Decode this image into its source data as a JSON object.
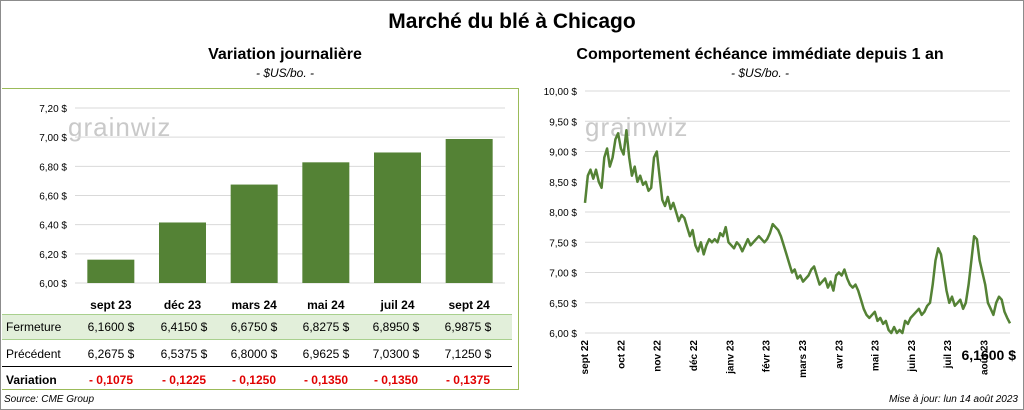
{
  "main_title": "Marché du blé à Chicago",
  "watermark": "grainwiz",
  "source": "Source: CME Group",
  "update": "Mise à jour: lun 14 août 2023",
  "chart_data": [
    {
      "type": "bar",
      "title": "Variation journalière",
      "subtitle": "- $US/bo. -",
      "categories": [
        "sept 23",
        "déc 23",
        "mars 24",
        "mai 24",
        "juil 24",
        "sept 24"
      ],
      "values": [
        6.16,
        6.415,
        6.675,
        6.8275,
        6.895,
        6.9875
      ],
      "ylim": [
        6.0,
        7.2
      ],
      "yticks": [
        "6,00 $",
        "6,20 $",
        "6,40 $",
        "6,60 $",
        "6,80 $",
        "7,00 $",
        "7,20 $"
      ],
      "color": "#548235",
      "grid": true
    },
    {
      "type": "line",
      "title": "Comportement échéance immédiate depuis 1 an",
      "subtitle": "- $US/bo. -",
      "ylim": [
        6.0,
        10.0
      ],
      "yticks": [
        "6,00 $",
        "6,50 $",
        "7,00 $",
        "7,50 $",
        "8,00 $",
        "8,50 $",
        "9,00 $",
        "9,50 $",
        "10,00 $"
      ],
      "xticks": [
        "sept 22",
        "oct 22",
        "nov 22",
        "déc 22",
        "janv 23",
        "févr 23",
        "mars 23",
        "avr 23",
        "mai 23",
        "juin 23",
        "juil 23",
        "août 23"
      ],
      "last_value_label": "6,1600 $",
      "color": "#548235",
      "grid": true,
      "series": [
        {
          "values": [
            8.15,
            8.6,
            8.7,
            8.55,
            8.7,
            8.5,
            8.4,
            8.9,
            9.05,
            8.75,
            8.9,
            9.2,
            9.3,
            9.05,
            8.95,
            9.35,
            8.9,
            8.6,
            8.75,
            8.5,
            8.6,
            8.45,
            8.5,
            8.35,
            8.4,
            8.9,
            9.0,
            8.6,
            8.2,
            8.1,
            8.25,
            8.05,
            8.15,
            8.0,
            7.85,
            7.95,
            7.9,
            7.75,
            7.6,
            7.7,
            7.45,
            7.35,
            7.5,
            7.3,
            7.45,
            7.55,
            7.5,
            7.55,
            7.5,
            7.65,
            7.6,
            7.75,
            7.5,
            7.45,
            7.4,
            7.5,
            7.45,
            7.35,
            7.45,
            7.55,
            7.45,
            7.5,
            7.55,
            7.6,
            7.55,
            7.5,
            7.55,
            7.65,
            7.8,
            7.75,
            7.7,
            7.6,
            7.45,
            7.3,
            7.15,
            7.0,
            7.05,
            6.9,
            6.95,
            6.85,
            6.9,
            6.95,
            7.05,
            7.1,
            6.95,
            6.8,
            6.85,
            6.9,
            6.75,
            6.85,
            6.7,
            6.95,
            7.0,
            6.95,
            7.05,
            6.9,
            6.8,
            6.75,
            6.8,
            6.7,
            6.55,
            6.4,
            6.3,
            6.25,
            6.3,
            6.35,
            6.2,
            6.25,
            6.15,
            6.2,
            6.05,
            6.0,
            6.1,
            6.0,
            6.05,
            6.0,
            6.2,
            6.15,
            6.25,
            6.3,
            6.35,
            6.4,
            6.3,
            6.35,
            6.45,
            6.5,
            6.8,
            7.2,
            7.4,
            7.3,
            7.0,
            6.7,
            6.5,
            6.6,
            6.45,
            6.5,
            6.55,
            6.4,
            6.5,
            6.8,
            7.2,
            7.6,
            7.55,
            7.2,
            7.0,
            6.8,
            6.5,
            6.4,
            6.3,
            6.5,
            6.6,
            6.55,
            6.35,
            6.25,
            6.16
          ]
        }
      ]
    }
  ],
  "table": {
    "rows": [
      {
        "label": "Fermeture",
        "values": [
          "6,1600  $",
          "6,4150  $",
          "6,6750  $",
          "6,8275  $",
          "6,8950  $",
          "6,9875  $"
        ]
      },
      {
        "label": "Précédent",
        "values": [
          "6,2675  $",
          "6,5375  $",
          "6,8000  $",
          "6,9625  $",
          "7,0300  $",
          "7,1250  $"
        ]
      },
      {
        "label": "Variation",
        "values": [
          "- 0,1075",
          "- 0,1225",
          "- 0,1250",
          "- 0,1350",
          "- 0,1350",
          "- 0,1375"
        ]
      }
    ]
  }
}
